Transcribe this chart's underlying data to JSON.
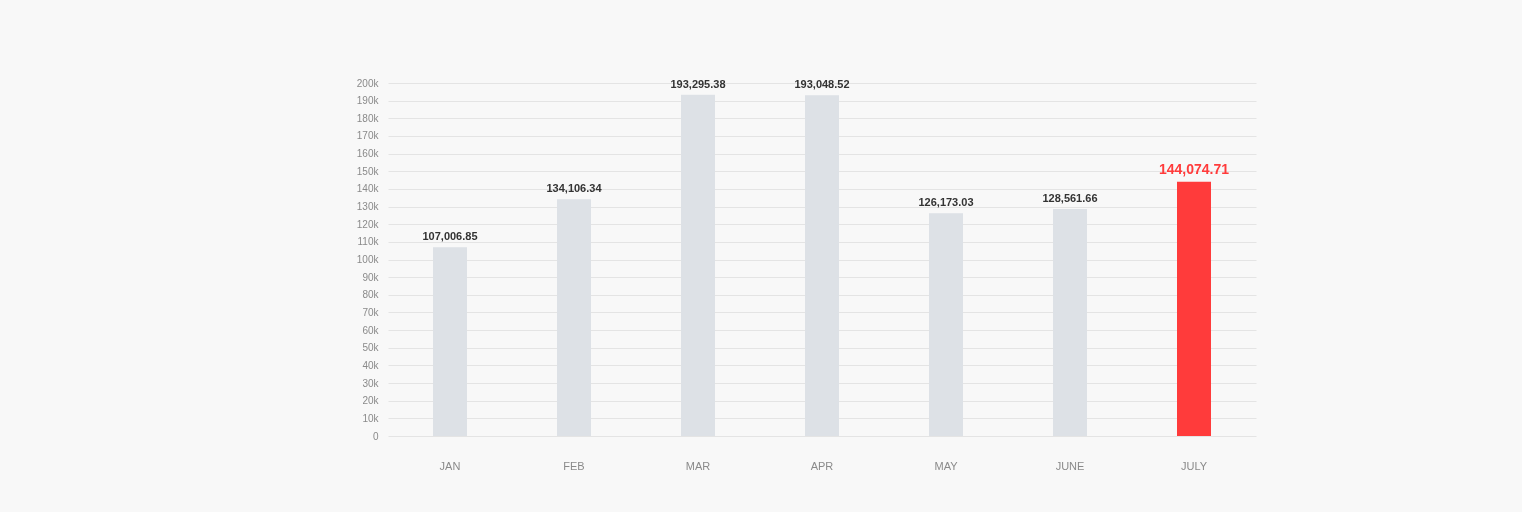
{
  "chart_data": {
    "type": "bar",
    "categories": [
      "JAN",
      "FEB",
      "MAR",
      "APR",
      "MAY",
      "JUNE",
      "JULY"
    ],
    "values": [
      107006.85,
      134106.34,
      193295.38,
      193048.52,
      126173.03,
      128561.66,
      144074.71
    ],
    "colors": [
      "#dde1e6",
      "#dde1e6",
      "#dde1e6",
      "#dde1e6",
      "#dde1e6",
      "#dde1e6",
      "#ff3b3b"
    ],
    "value_labels": [
      "107,006.85",
      "134,106.34",
      "193,295.38",
      "193,048.52",
      "126,173.03",
      "128,561.66",
      "144,074.71"
    ],
    "ylim": [
      0,
      200000
    ],
    "yticks": [
      0,
      {
        "value": 10000,
        "label": "10k"
      },
      {
        "value": 20000,
        "label": "20k"
      },
      {
        "value": 30000,
        "label": "30k"
      },
      {
        "value": 40000,
        "label": "40k"
      },
      {
        "value": 50000,
        "label": "50k"
      },
      {
        "value": 60000,
        "label": "60k"
      },
      {
        "value": 70000,
        "label": "70k"
      },
      {
        "value": 80000,
        "label": "80k"
      },
      {
        "value": 90000,
        "label": "90k"
      },
      {
        "value": 100000,
        "label": "100k"
      },
      {
        "value": 110000,
        "label": "110k"
      },
      {
        "value": 120000,
        "label": "120k"
      },
      {
        "value": 130000,
        "label": "130k"
      },
      {
        "value": 140000,
        "label": "140k"
      },
      {
        "value": 150000,
        "label": "150k"
      },
      {
        "value": 160000,
        "label": "160k"
      },
      {
        "value": 170000,
        "label": "170k"
      },
      {
        "value": 180000,
        "label": "180k"
      },
      {
        "value": 190000,
        "label": "190k"
      },
      {
        "value": 200000,
        "label": "200k"
      }
    ],
    "grid": "y"
  }
}
